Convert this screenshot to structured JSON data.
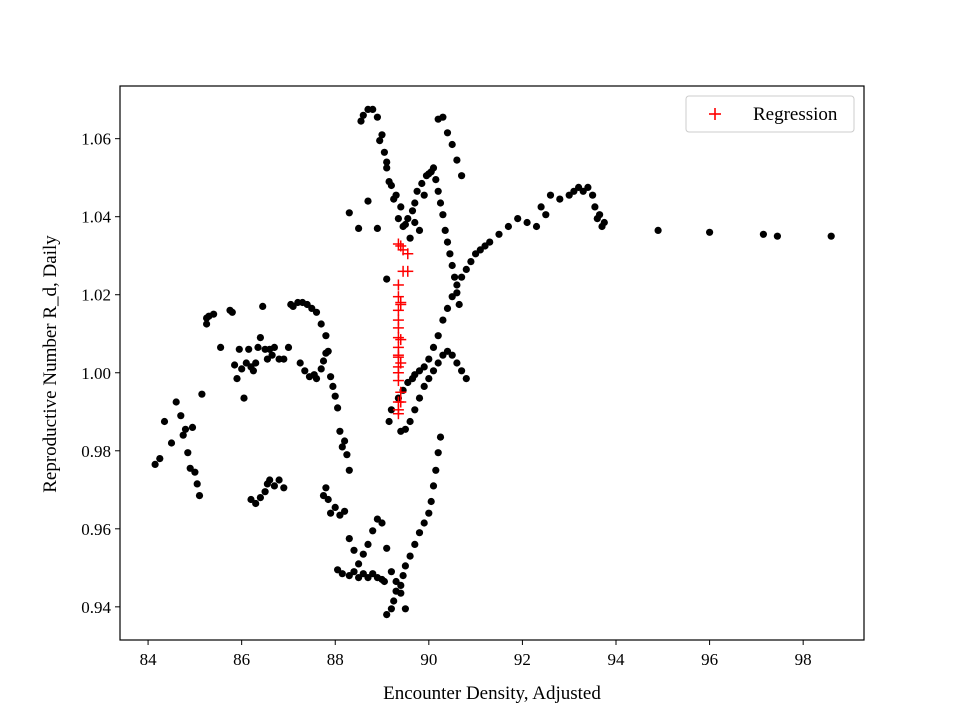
{
  "chart_data": {
    "type": "scatter",
    "xlabel": "Encounter Density, Adjusted",
    "ylabel": "Reproductive Number R_d, Daily",
    "xlim": [
      83.4,
      99.3
    ],
    "ylim": [
      0.9315,
      1.0735
    ],
    "x_ticks": [
      "84",
      "86",
      "88",
      "90",
      "92",
      "94",
      "96",
      "98"
    ],
    "y_ticks": [
      "0.94",
      "0.96",
      "0.98",
      "1.00",
      "1.02",
      "1.04",
      "1.06"
    ],
    "x_tick_values": [
      84,
      86,
      88,
      90,
      92,
      94,
      96,
      98
    ],
    "y_tick_values": [
      0.94,
      0.96,
      0.98,
      1.0,
      1.02,
      1.04,
      1.06
    ],
    "grid": false,
    "legend_position": "top-right",
    "legend": [
      "Regression"
    ],
    "colors": {
      "observed": "#000000",
      "regression": "#ff0000"
    },
    "series": [
      {
        "marker": "dot",
        "x": [
          84.15,
          84.25,
          84.35,
          84.5,
          84.6,
          84.7,
          84.75,
          84.8,
          84.85,
          84.9,
          84.95,
          85.0,
          85.05,
          85.1,
          85.15,
          85.25,
          85.25,
          85.3,
          85.4,
          85.55,
          85.75,
          85.8,
          85.85,
          85.9,
          85.95,
          86.0,
          86.05,
          86.1,
          86.15,
          86.2,
          86.25,
          86.3,
          86.35,
          86.4,
          86.45,
          86.5,
          86.55,
          86.6,
          86.65,
          86.7,
          86.8,
          86.9,
          87.0,
          87.05,
          87.1,
          87.2,
          87.3,
          87.4,
          87.5,
          87.6,
          87.7,
          87.8,
          86.2,
          86.3,
          86.4,
          86.5,
          86.55,
          86.6,
          86.7,
          86.8,
          86.9,
          87.25,
          87.35,
          87.45,
          87.55,
          87.6,
          87.7,
          87.75,
          87.8,
          87.85,
          87.9,
          87.95,
          88.0,
          88.05,
          88.1,
          88.15,
          88.2,
          88.25,
          88.3,
          87.75,
          87.8,
          87.85,
          87.9,
          88.0,
          88.1,
          88.2,
          88.3,
          88.4,
          88.5,
          88.6,
          88.7,
          88.8,
          88.9,
          89.0,
          89.1,
          89.2,
          89.3,
          89.4,
          89.5,
          88.05,
          88.15,
          88.3,
          88.4,
          88.5,
          88.6,
          88.7,
          88.8,
          88.9,
          89.0,
          89.05,
          89.1,
          89.2,
          89.25,
          89.3,
          89.4,
          89.45,
          89.5,
          89.6,
          89.7,
          89.8,
          89.9,
          90.0,
          90.05,
          90.1,
          90.15,
          90.2,
          90.25,
          88.55,
          88.6,
          88.7,
          88.8,
          88.9,
          89.0,
          89.1,
          89.2,
          89.3,
          89.4,
          89.5,
          89.6,
          89.7,
          89.8,
          89.9,
          90.0,
          90.1,
          90.2,
          90.3,
          90.4,
          90.5,
          90.6,
          90.7,
          88.95,
          89.05,
          89.1,
          89.15,
          89.25,
          89.35,
          89.45,
          89.55,
          89.65,
          89.7,
          89.75,
          89.85,
          89.95,
          90.05,
          90.15,
          90.2,
          90.25,
          90.3,
          90.35,
          90.4,
          90.45,
          90.5,
          90.55,
          90.6,
          90.65,
          89.15,
          89.2,
          89.35,
          89.45,
          89.55,
          89.65,
          89.7,
          89.8,
          89.9,
          90.0,
          90.1,
          90.2,
          90.3,
          90.4,
          90.5,
          90.6,
          90.7,
          90.8,
          90.9,
          91.0,
          91.1,
          91.2,
          91.3,
          91.5,
          91.7,
          91.9,
          92.1,
          92.3,
          92.5,
          88.3,
          88.5,
          88.7,
          88.9,
          89.1,
          89.4,
          89.5,
          89.6,
          89.7,
          89.8,
          89.9,
          90.0,
          90.1,
          90.2,
          90.3,
          90.4,
          90.5,
          90.6,
          90.7,
          90.8,
          92.4,
          92.6,
          92.8,
          93.0,
          93.1,
          93.2,
          93.3,
          93.4,
          93.5,
          93.55,
          93.6,
          93.65,
          93.7,
          93.75,
          94.9,
          96.0,
          97.15,
          97.45,
          98.6
        ],
        "y": [
          0.9765,
          0.978,
          0.9875,
          0.982,
          0.9925,
          0.989,
          0.984,
          0.9855,
          0.9795,
          0.9755,
          0.986,
          0.9745,
          0.9715,
          0.9685,
          0.9945,
          1.0125,
          1.014,
          1.0145,
          1.015,
          1.0065,
          1.016,
          1.0155,
          1.002,
          0.9985,
          1.006,
          1.001,
          0.9935,
          1.0025,
          1.006,
          1.0015,
          1.0005,
          1.0025,
          1.0065,
          1.009,
          1.017,
          1.006,
          1.0035,
          1.006,
          1.0045,
          1.0065,
          1.0035,
          1.0035,
          1.0065,
          1.0175,
          1.017,
          1.018,
          1.018,
          1.0175,
          1.0165,
          1.0155,
          1.0125,
          1.0095,
          0.9675,
          0.9665,
          0.968,
          0.9695,
          0.9715,
          0.9725,
          0.971,
          0.9725,
          0.9705,
          1.0025,
          1.0005,
          0.999,
          0.9995,
          0.9985,
          1.001,
          1.003,
          1.005,
          1.0055,
          0.999,
          0.9965,
          0.994,
          0.991,
          0.985,
          0.981,
          0.9825,
          0.979,
          0.975,
          0.9685,
          0.9705,
          0.9675,
          0.964,
          0.9655,
          0.9635,
          0.9645,
          0.9575,
          0.9545,
          0.951,
          0.9535,
          0.956,
          0.9595,
          0.9625,
          0.9615,
          0.955,
          0.949,
          0.9465,
          0.9435,
          0.9395,
          0.9495,
          0.9485,
          0.948,
          0.949,
          0.9475,
          0.9485,
          0.9475,
          0.9485,
          0.9475,
          0.947,
          0.9465,
          0.938,
          0.9395,
          0.9415,
          0.944,
          0.9455,
          0.948,
          0.9505,
          0.953,
          0.956,
          0.959,
          0.9615,
          0.964,
          0.967,
          0.971,
          0.975,
          0.9795,
          0.9835,
          1.0645,
          1.066,
          1.0675,
          1.0675,
          1.0655,
          1.061,
          1.054,
          1.048,
          1.0455,
          1.0425,
          1.038,
          1.0345,
          1.0385,
          1.0365,
          1.0455,
          1.051,
          1.0525,
          1.065,
          1.0655,
          1.0615,
          1.0585,
          1.0545,
          1.0505,
          1.0595,
          1.0565,
          1.0525,
          1.049,
          1.0445,
          1.0395,
          1.0375,
          1.0395,
          1.0415,
          1.0435,
          1.0465,
          1.0485,
          1.0505,
          1.0515,
          1.0495,
          1.0465,
          1.0435,
          1.0405,
          1.0365,
          1.0335,
          1.0305,
          1.0275,
          1.0245,
          1.0205,
          1.0175,
          0.9875,
          0.9905,
          0.9935,
          0.9955,
          0.9975,
          0.9985,
          0.9995,
          1.0005,
          1.0015,
          1.0035,
          1.0065,
          1.0095,
          1.0135,
          1.0165,
          1.0195,
          1.0225,
          1.0245,
          1.0265,
          1.0285,
          1.0305,
          1.0315,
          1.0325,
          1.0335,
          1.0355,
          1.0375,
          1.0395,
          1.0385,
          1.0375,
          1.0405,
          1.041,
          1.037,
          1.044,
          1.037,
          1.024,
          0.985,
          0.9855,
          0.9875,
          0.9905,
          0.9935,
          0.9965,
          0.9985,
          1.0005,
          1.0025,
          1.0045,
          1.0055,
          1.0045,
          1.0025,
          1.0005,
          0.9985,
          1.0425,
          1.0455,
          1.0445,
          1.0455,
          1.0465,
          1.0475,
          1.0465,
          1.0475,
          1.0455,
          1.0425,
          1.0395,
          1.0405,
          1.0375,
          1.0385,
          1.0365,
          1.036,
          1.0355,
          1.035,
          1.035
        ]
      },
      {
        "name": "Regression",
        "marker": "plus",
        "x": [
          89.35,
          89.4,
          89.35,
          89.35,
          89.4,
          89.35,
          89.35,
          89.35,
          89.4,
          89.35,
          89.4,
          89.35,
          89.35,
          89.35,
          89.4,
          89.35,
          89.35,
          89.35,
          89.4,
          89.35,
          89.35,
          89.35,
          89.4,
          89.45,
          89.45,
          89.55,
          89.55
        ],
        "y": [
          1.033,
          1.0325,
          1.0225,
          1.0195,
          1.0175,
          1.016,
          1.0115,
          1.009,
          1.0085,
          1.004,
          1.0025,
          1.0015,
          1.0,
          0.998,
          0.995,
          0.9925,
          0.9905,
          0.9895,
          0.9925,
          1.0045,
          1.0065,
          1.0135,
          1.018,
          1.026,
          1.0315,
          1.026,
          1.0305
        ]
      }
    ]
  }
}
